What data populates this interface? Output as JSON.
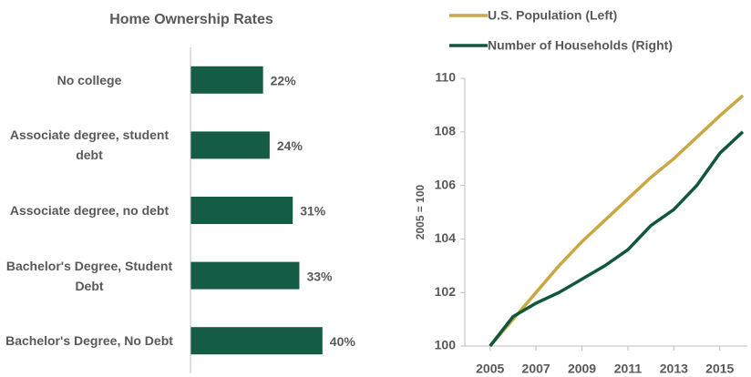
{
  "chart_data": [
    {
      "type": "hbar",
      "title": "Home Ownership Rates",
      "categories": [
        "No college",
        "Associate degree, student debt",
        "Associate degree, no debt",
        "Bachelor's Degree, Student Debt",
        "Bachelor's Degree, No Debt"
      ],
      "values": [
        22,
        24,
        31,
        33,
        40
      ],
      "value_labels": [
        "22%",
        "24%",
        "31%",
        "33%",
        "40%"
      ],
      "color": "#145c45",
      "xlim": [
        0,
        50
      ]
    },
    {
      "type": "line",
      "ylabel": "2005 = 100",
      "x": [
        2005,
        2006,
        2007,
        2008,
        2009,
        2010,
        2011,
        2012,
        2013,
        2014,
        2015,
        2016
      ],
      "series": [
        {
          "name": "U.S. Population (Left)",
          "color": "#c9a844",
          "values": [
            100,
            101.0,
            102.0,
            103.0,
            103.9,
            104.7,
            105.5,
            106.3,
            107.0,
            107.8,
            108.6,
            109.35
          ]
        },
        {
          "name": "Number of Households (Right)",
          "color": "#10573e",
          "values": [
            100,
            101.1,
            101.6,
            102.0,
            102.5,
            103.0,
            103.6,
            104.5,
            105.1,
            106.0,
            107.2,
            108.0
          ]
        }
      ],
      "xlim": [
        2003.9,
        2016.2
      ],
      "xticks": [
        2005,
        2007,
        2009,
        2011,
        2013,
        2015
      ],
      "ylim": [
        100,
        110
      ],
      "yticks": [
        100,
        102,
        104,
        106,
        108,
        110
      ]
    }
  ]
}
